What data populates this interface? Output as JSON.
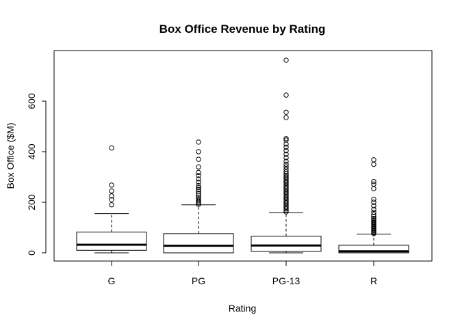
{
  "chart_data": {
    "type": "boxplot",
    "title": "Box Office Revenue by Rating",
    "xlabel": "Rating",
    "ylabel": "Box Office ($M)",
    "ylim": [
      -30,
      790
    ],
    "yticks": [
      0,
      200,
      400,
      600
    ],
    "yticks_labels": [
      "0",
      "200",
      "400",
      "600"
    ],
    "categories": [
      "G",
      "PG",
      "PG-13",
      "R"
    ],
    "boxes": [
      {
        "category": "G",
        "whisker_low": 0,
        "q1": 10,
        "median": 32,
        "q3": 82,
        "whisker_high": 155,
        "outliers": [
          190,
          210,
          225,
          245,
          268,
          415
        ]
      },
      {
        "category": "PG",
        "whisker_low": 0,
        "q1": 0,
        "median": 28,
        "q3": 76,
        "whisker_high": 190,
        "outliers": [
          192,
          197,
          202,
          208,
          214,
          220,
          228,
          236,
          244,
          250,
          258,
          266,
          280,
          292,
          306,
          318,
          340,
          370,
          400,
          438
        ]
      },
      {
        "category": "PG-13",
        "whisker_low": 0,
        "q1": 6,
        "median": 29,
        "q3": 66,
        "whisker_high": 158,
        "outliers": [
          162,
          168,
          174,
          180,
          186,
          192,
          198,
          204,
          210,
          216,
          222,
          228,
          234,
          240,
          246,
          252,
          258,
          264,
          270,
          276,
          282,
          288,
          294,
          300,
          306,
          312,
          320,
          330,
          340,
          350,
          362,
          376,
          390,
          404,
          418,
          430,
          446,
          452,
          535,
          556,
          624,
          762
        ]
      },
      {
        "category": "R",
        "whisker_low": 0,
        "q1": 0,
        "median": 6,
        "q3": 30,
        "whisker_high": 74,
        "outliers": [
          76,
          80,
          84,
          88,
          92,
          96,
          100,
          104,
          108,
          112,
          116,
          120,
          124,
          130,
          136,
          144,
          150,
          160,
          172,
          186,
          200,
          212,
          254,
          272,
          282,
          350,
          368
        ]
      }
    ]
  }
}
